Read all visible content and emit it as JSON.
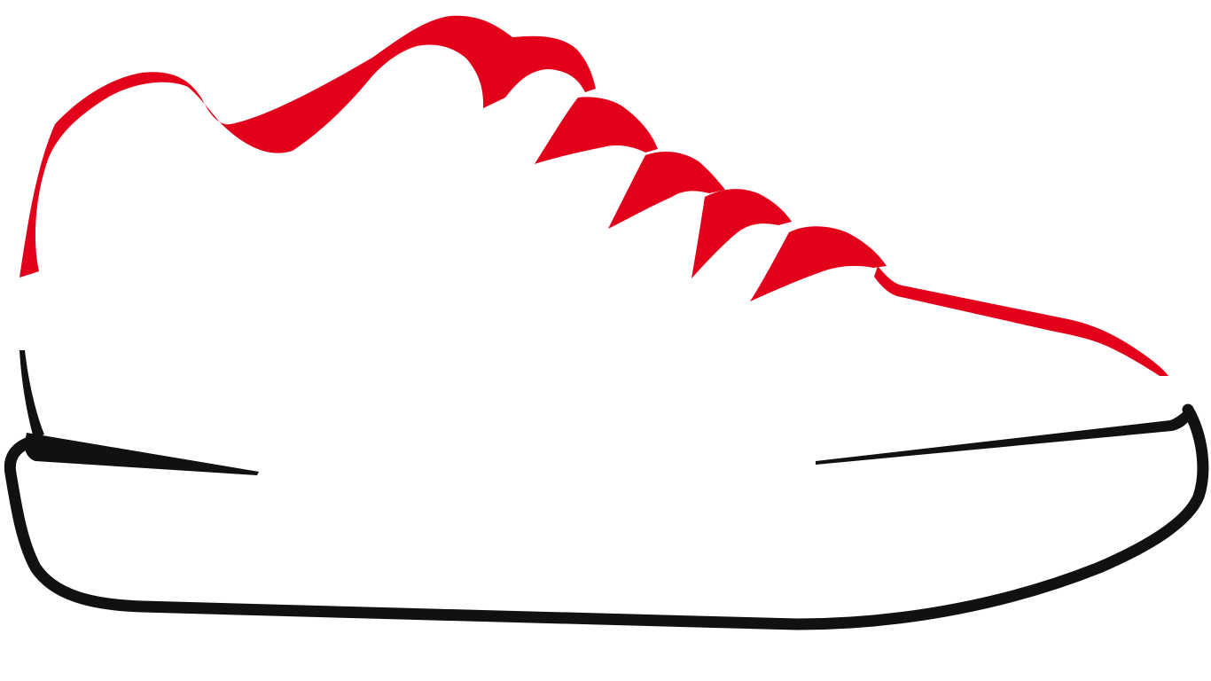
{
  "image": {
    "subject_icon": "sneaker-icon",
    "colors": {
      "background": "#ffffff",
      "upper": "#e2001a",
      "sole": "#111111"
    }
  }
}
